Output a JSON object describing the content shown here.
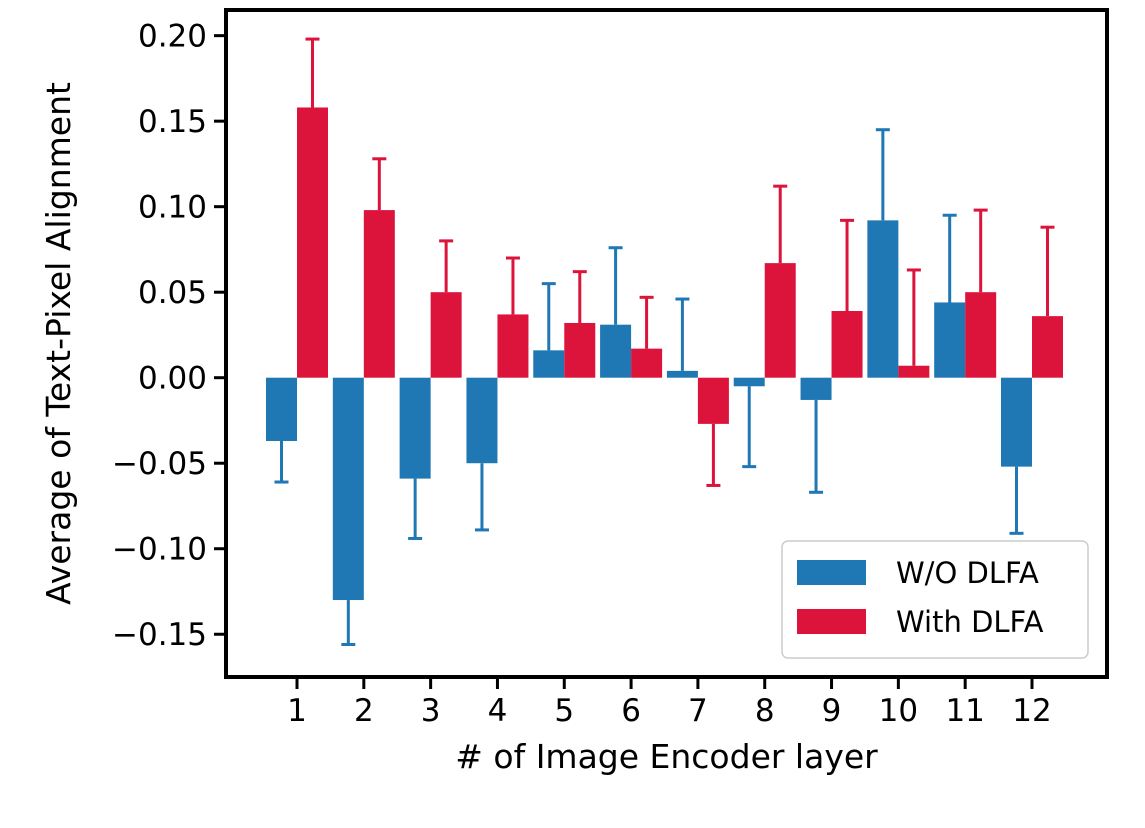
{
  "chart_data": {
    "type": "bar",
    "title": "",
    "xlabel": "# of Image Encoder layer",
    "ylabel": "Average of Text-Pixel Alignment",
    "categories": [
      "1",
      "2",
      "3",
      "4",
      "5",
      "6",
      "7",
      "8",
      "9",
      "10",
      "11",
      "12"
    ],
    "ylim": [
      -0.175,
      0.215
    ],
    "yticks": [
      -0.15,
      -0.1,
      -0.05,
      0.0,
      0.05,
      0.1,
      0.15,
      0.2
    ],
    "ytick_labels": [
      "−0.15",
      "−0.10",
      "−0.05",
      "0.00",
      "0.05",
      "0.10",
      "0.15",
      "0.20"
    ],
    "grid": false,
    "legend_position": "bottom-right",
    "series": [
      {
        "name": "W/O DLFA",
        "color": "#1f77b4",
        "values": [
          -0.037,
          -0.13,
          -0.059,
          -0.05,
          0.016,
          0.031,
          0.004,
          -0.005,
          -0.013,
          0.092,
          0.044,
          -0.052
        ],
        "errors": [
          0.024,
          0.026,
          0.035,
          0.039,
          0.039,
          0.045,
          0.042,
          0.047,
          0.054,
          0.053,
          0.051,
          0.039
        ]
      },
      {
        "name": "With DLFA",
        "color": "#dc143c",
        "values": [
          0.158,
          0.098,
          0.05,
          0.037,
          0.032,
          0.017,
          -0.027,
          0.067,
          0.039,
          0.007,
          0.05,
          0.036
        ],
        "errors": [
          0.04,
          0.03,
          0.03,
          0.033,
          0.03,
          0.03,
          0.036,
          0.045,
          0.053,
          0.056,
          0.048,
          0.052
        ]
      }
    ]
  }
}
